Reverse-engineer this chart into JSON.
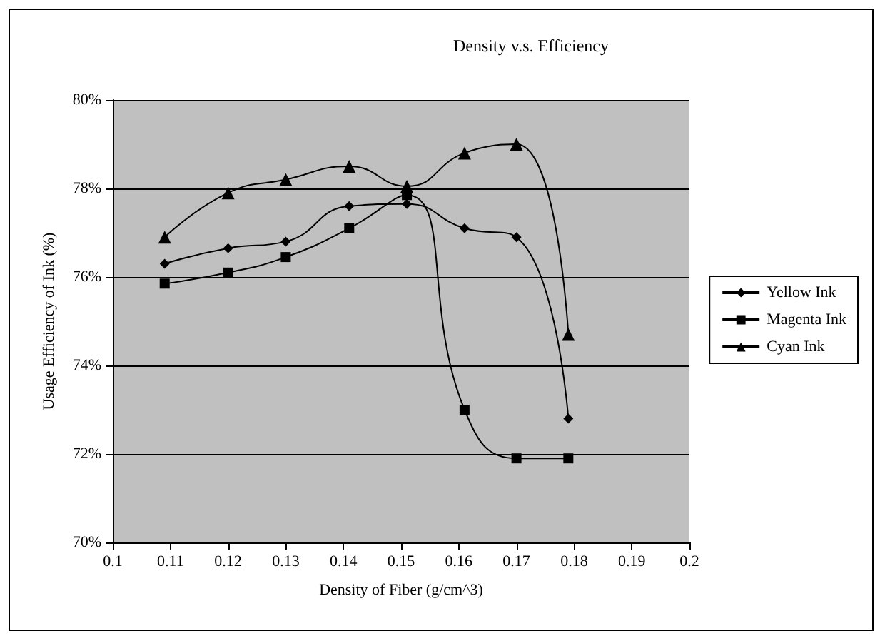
{
  "chart_data": {
    "type": "line",
    "title": "Density v.s. Efficiency",
    "xlabel": "Density of Fiber (g/cm^3)",
    "ylabel": "Usage Efficiency of Ink (%)",
    "x": [
      0.109,
      0.12,
      0.13,
      0.141,
      0.151,
      0.161,
      0.17,
      0.179
    ],
    "series": [
      {
        "name": "Yellow Ink",
        "color": "#000000",
        "marker": "diamond",
        "values": [
          76.3,
          76.65,
          76.8,
          77.6,
          77.65,
          77.1,
          76.9,
          72.8
        ]
      },
      {
        "name": "Magenta Ink",
        "color": "#000000",
        "marker": "square",
        "values": [
          75.85,
          76.1,
          76.45,
          77.1,
          77.85,
          73.0,
          71.9,
          71.9
        ]
      },
      {
        "name": "Cyan Ink",
        "color": "#000000",
        "marker": "triangle",
        "values": [
          76.9,
          77.9,
          78.2,
          78.5,
          78.05,
          78.8,
          79.0,
          74.7
        ]
      }
    ],
    "xlim": [
      0.1,
      0.2
    ],
    "xticks": [
      0.1,
      0.11,
      0.12,
      0.13,
      0.14,
      0.15,
      0.16,
      0.17,
      0.18,
      0.19,
      0.2
    ],
    "ylim": [
      70,
      80
    ],
    "yticks": [
      {
        "value": 70,
        "label": "70%"
      },
      {
        "value": 72,
        "label": "72%"
      },
      {
        "value": 74,
        "label": "74%"
      },
      {
        "value": 76,
        "label": "76%"
      },
      {
        "value": 78,
        "label": "78%"
      },
      {
        "value": 80,
        "label": "80%"
      }
    ],
    "grid": "y",
    "legend": "right",
    "line_style": "solid"
  }
}
